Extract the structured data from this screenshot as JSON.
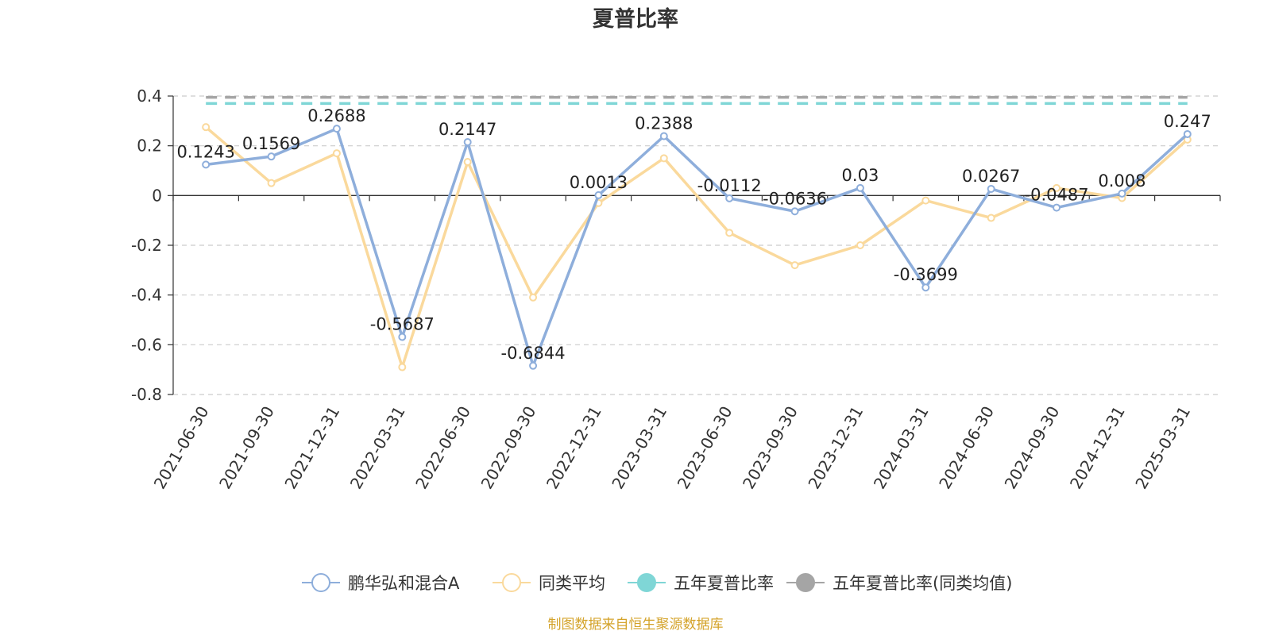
{
  "chart_data": {
    "type": "line",
    "title": "夏普比率",
    "categories": [
      "2021-06-30",
      "2021-09-30",
      "2021-12-31",
      "2022-03-31",
      "2022-06-30",
      "2022-09-30",
      "2022-12-31",
      "2023-03-31",
      "2023-06-30",
      "2023-09-30",
      "2023-12-31",
      "2024-03-31",
      "2024-06-30",
      "2024-09-30",
      "2024-12-31",
      "2025-03-31"
    ],
    "ylim": [
      -0.8,
      0.4
    ],
    "yticks": [
      0.4,
      0.2,
      0,
      -0.2,
      -0.4,
      -0.6,
      -0.8
    ],
    "ytick_labels": [
      "0.4",
      "0.2",
      "0",
      "-0.2",
      "-0.4",
      "-0.6",
      "-0.8"
    ],
    "grid": true,
    "legend_position": "bottom",
    "series": [
      {
        "name": "鹏华弘和混合A",
        "color": "#8eaedb",
        "values": [
          0.1243,
          0.1569,
          0.2688,
          -0.5687,
          0.2147,
          -0.6844,
          0.0013,
          0.2388,
          -0.0112,
          -0.0636,
          0.03,
          -0.3699,
          0.0267,
          -0.0487,
          0.008,
          0.247
        ],
        "labels": [
          "0.1243",
          "0.1569",
          "0.2688",
          "-0.5687",
          "0.2147",
          "-0.6844",
          "0.0013",
          "0.2388",
          "-0.0112",
          "-0.0636",
          "0.03",
          "-0.3699",
          "0.0267",
          "-0.0487",
          "0.008",
          "0.247"
        ]
      },
      {
        "name": "同类平均",
        "color": "#fad99c",
        "values": [
          0.275,
          0.05,
          0.17,
          -0.69,
          0.135,
          -0.41,
          -0.03,
          0.15,
          -0.15,
          -0.28,
          -0.2,
          -0.02,
          -0.09,
          0.03,
          -0.01,
          0.225
        ]
      },
      {
        "name": "五年夏普比率",
        "color": "#7fd6d6",
        "constant": 0.37,
        "dashed": true
      },
      {
        "name": "五年夏普比率(同类均值)",
        "color": "#a5a5a5",
        "constant": 0.395,
        "dashed": true
      }
    ],
    "source_note": "制图数据来自恒生聚源数据库",
    "source_color": "#d4a32a"
  }
}
